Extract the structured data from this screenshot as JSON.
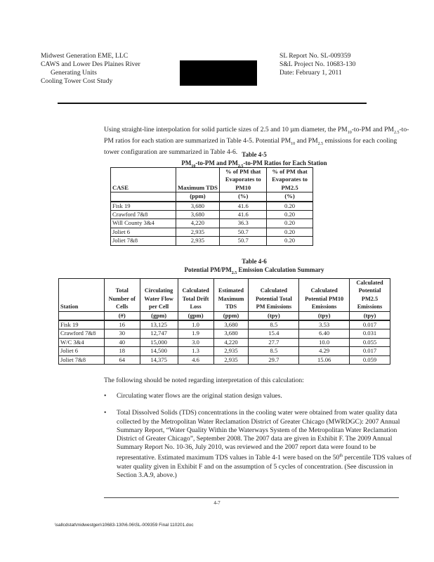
{
  "header": {
    "left": [
      "Midwest Generation EME, LLC",
      "CAWS and Lower Des Plaines River",
      "Generating Units",
      "Cooling Tower Cost Study"
    ],
    "right": [
      "SL Report No. SL-009359",
      "S&L Project No. 10683-130",
      "Date:  February 1, 2011"
    ]
  },
  "intro": {
    "p1": "Using straight-line interpolation for solid particle sizes of 2.5 and 10 µm diameter, the PM",
    "s1": "10",
    "p2": "-to-PM and PM",
    "s2": "2.5",
    "p3": "-to-PM ratios for each station are summarized in Table 4-5.  Potential PM",
    "s3": "10",
    "p4": " and PM",
    "s4": "2.5",
    "p5": " emissions for each cooling tower configuration are summarized in Table 4-6."
  },
  "table45": {
    "title": "Table 4-5",
    "subtitle_a": "PM",
    "subtitle_s1": "10",
    "subtitle_b": "-to-PM and PM",
    "subtitle_s2": "2.5",
    "subtitle_c": "-to-PM Ratios for Each Station",
    "headers": [
      "CASE",
      "Maximum TDS",
      "% of PM that Evaporates to PM10",
      "% of PM that Evaporates to PM2.5"
    ],
    "units": [
      "",
      "(ppm)",
      "(%)",
      "(%)"
    ],
    "rows": [
      [
        "Fisk 19",
        "3,680",
        "41.6",
        "0.20"
      ],
      [
        "Crawford 7&8",
        "3,680",
        "41.6",
        "0.20"
      ],
      [
        "Will County 3&4",
        "4,220",
        "36.3",
        "0.20"
      ],
      [
        "Joliet 6",
        "2,935",
        "50.7",
        "0.20"
      ],
      [
        "Joliet 7&8",
        "2,935",
        "50.7",
        "0.20"
      ]
    ]
  },
  "table46": {
    "title": "Table 4-6",
    "subtitle_a": "Potential PM/PM",
    "subtitle_s": "2.5",
    "subtitle_b": " Emission Calculation Summary",
    "headers": [
      "Station",
      "Total Number of Cells",
      "Circulating Water Flow per Cell",
      "Calculated Total Drift Loss",
      "Estimated Maximum TDS",
      "Calculated Potential Total PM Emissions",
      "Calculated Potential PM10 Emissions",
      "Calculated Potential PM2.5 Emissions"
    ],
    "units": [
      "",
      "(#)",
      "(gpm)",
      "(gpm)",
      "(ppm)",
      "(tpy)",
      "(tpy)",
      "(tpy)"
    ],
    "rows": [
      [
        "Fisk 19",
        "16",
        "13,125",
        "1.0",
        "3,680",
        "8.5",
        "3.53",
        "0.017"
      ],
      [
        "Crawford 7&8",
        "30",
        "12,747",
        "1.9",
        "3,680",
        "15.4",
        "6.40",
        "0.031"
      ],
      [
        "W/C 3&4",
        "40",
        "15,000",
        "3.0",
        "4,220",
        "27.7",
        "10.0",
        "0.055"
      ],
      [
        "Joliet 6",
        "18",
        "14,500",
        "1.3",
        "2,935",
        "8.5",
        "4.29",
        "0.017"
      ],
      [
        "Joliet 7&8",
        "64",
        "14,375",
        "4.6",
        "2,935",
        "29.7",
        "15.06",
        "0.059"
      ]
    ]
  },
  "notes": {
    "lead": "The following should be noted regarding interpretation of this calculation:",
    "b1": "Circulating water flows are the original station design values.",
    "b2a": "Total Dissolved Solids (TDS) concentrations in the cooling water were obtained from water quality data collected by the Metropolitan Water Reclamation District of Greater Chicago (MWRDGC):  2007 Annual Summary Report, “Water Quality Within the Waterways System of the Metropolitan Water Reclamation District of Greater Chicago”, September 2008.  The 2007 data are given in Exhibit F.  The 2009 Annual Summary Report No. 10-36, July 2010, was reviewed and the 2007 report data were found to be representative.  Estimated maximum TDS values in Table 4-1 were based on the 50",
    "b2sup": "th",
    "b2b": " percentile TDS values of water quality given in Exhibit F and on the assumption of 5 cycles of concentration. (See discussion in Section 3.A.9, above.)"
  },
  "footer": {
    "page": "4-7",
    "path": "\\sallcdstat\\midwestgen\\10683-130\\6.06\\SL-009359 Final 110201.doc"
  }
}
